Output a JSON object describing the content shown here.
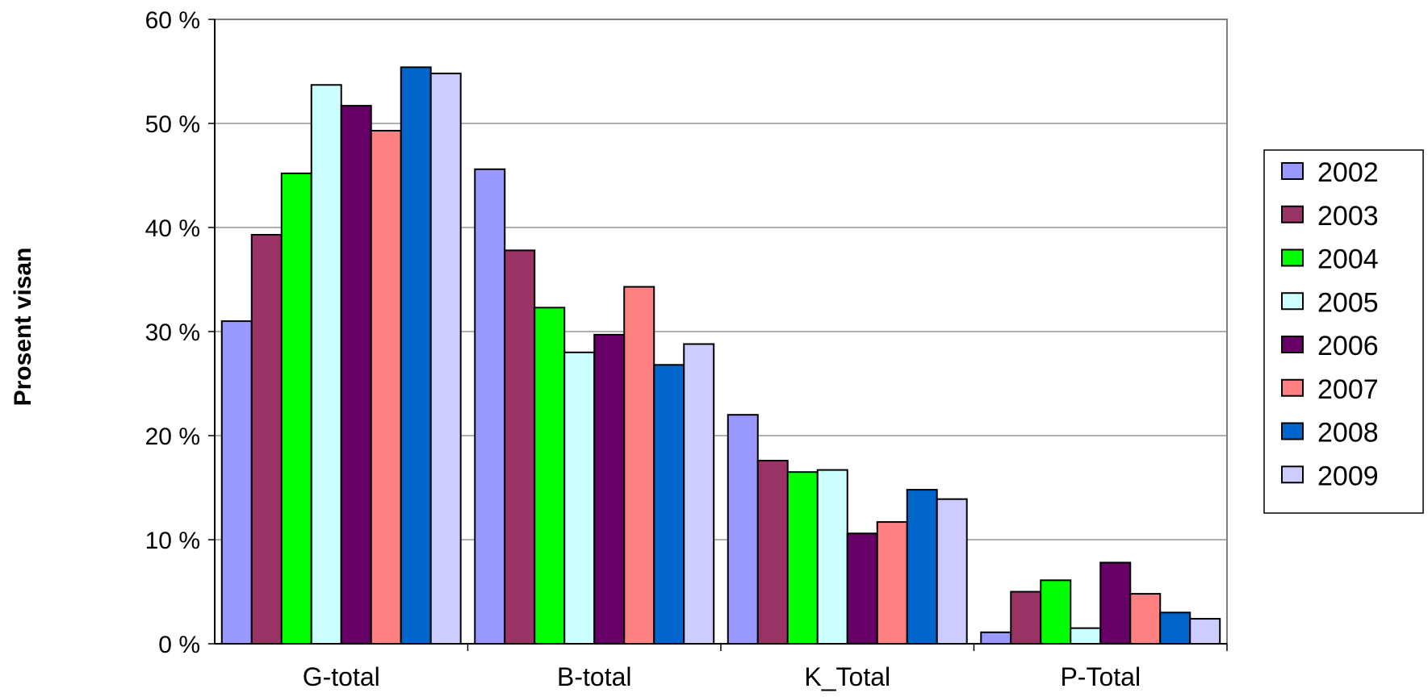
{
  "chart_data": {
    "type": "bar",
    "ylabel": "Prosent visan",
    "ylim": [
      0,
      60
    ],
    "yticks": [
      "0 %",
      "10 %",
      "20 %",
      "30 %",
      "40 %",
      "50 %",
      "60 %"
    ],
    "grid": true,
    "legend_position": "right",
    "categories": [
      "G-total",
      "B-total",
      "K_Total",
      "P-Total"
    ],
    "series": [
      {
        "name": "2002",
        "color": "#9999FF",
        "values": [
          31.0,
          45.6,
          22.0,
          1.1
        ]
      },
      {
        "name": "2003",
        "color": "#993366",
        "values": [
          39.3,
          37.8,
          17.6,
          5.0
        ]
      },
      {
        "name": "2004",
        "color": "#00FF00",
        "values": [
          45.2,
          32.3,
          16.5,
          6.1
        ]
      },
      {
        "name": "2005",
        "color": "#CCFFFF",
        "values": [
          53.7,
          28.0,
          16.7,
          1.5
        ]
      },
      {
        "name": "2006",
        "color": "#660066",
        "values": [
          51.7,
          29.7,
          10.6,
          7.8
        ]
      },
      {
        "name": "2007",
        "color": "#FF8080",
        "values": [
          49.3,
          34.3,
          11.7,
          4.8
        ]
      },
      {
        "name": "2008",
        "color": "#0066CC",
        "values": [
          55.4,
          26.8,
          14.8,
          3.0
        ]
      },
      {
        "name": "2009",
        "color": "#CCCCFF",
        "values": [
          54.8,
          28.8,
          13.9,
          2.4
        ]
      }
    ]
  }
}
